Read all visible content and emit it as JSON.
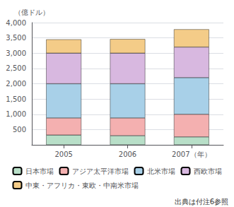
{
  "chart_data": {
    "type": "bar",
    "stacked": true,
    "categories": [
      "2005",
      "2006",
      "2007（年）"
    ],
    "series": [
      {
        "name": "日本市場",
        "color": "#b8dfc8",
        "values": [
          320,
          300,
          260
        ]
      },
      {
        "name": "アジア太平洋市場",
        "color": "#f4b0b0",
        "values": [
          560,
          580,
          740
        ]
      },
      {
        "name": "北米市場",
        "color": "#a8d0e8",
        "values": [
          1120,
          1120,
          1200
        ]
      },
      {
        "name": "西欧市場",
        "color": "#d8b8e0",
        "values": [
          1000,
          1000,
          1000
        ]
      },
      {
        "name": "中東・アフリカ・東欧・中南米市場",
        "color": "#f4cc88",
        "values": [
          450,
          460,
          580
        ]
      }
    ],
    "ylabel": "（億ドル）",
    "ylim": [
      0,
      4000
    ],
    "yticks": [
      {
        "value": 0,
        "label": ""
      },
      500,
      {
        "value": 1000,
        "label": "1,000"
      },
      {
        "value": 1500,
        "label": "1,500"
      },
      {
        "value": 2000,
        "label": "2,000"
      },
      {
        "value": 2500,
        "label": "2,500"
      },
      {
        "value": 3000,
        "label": "3,000"
      },
      {
        "value": 3500,
        "label": "3,500"
      },
      {
        "value": 4000,
        "label": "4,000"
      }
    ],
    "grid": true,
    "legend": "bottom",
    "annotations": [
      "出典は付注6参照"
    ]
  }
}
